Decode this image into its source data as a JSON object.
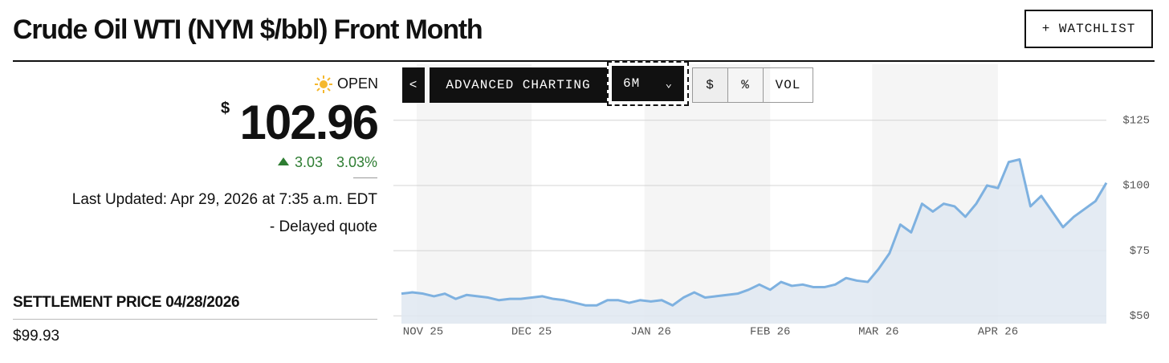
{
  "header": {
    "title": "Crude Oil WTI (NYM $/bbl) Front Month",
    "watchlist_button": "+ WATCHLIST"
  },
  "quote": {
    "status": "OPEN",
    "currency": "$",
    "price": "102.96",
    "change": "3.03",
    "change_percent": "3.03%",
    "last_updated": "Last Updated: Apr 29, 2026 at 7:35 a.m. EDT",
    "note": "- Delayed quote",
    "settlement_label": "SETTLEMENT PRICE 04/28/2026",
    "settlement_value": "$99.93"
  },
  "toolbar": {
    "back": "<",
    "advanced": "ADVANCED CHARTING",
    "range": "6M",
    "modes": [
      "$",
      "%",
      "VOL"
    ]
  },
  "chart_data": {
    "type": "line",
    "color": "#7eb1e0",
    "area_color": "#dfe7f1",
    "grid": true,
    "categories": [
      null,
      null,
      "NOV 25",
      null,
      null,
      null,
      null,
      null,
      null,
      null,
      null,
      null,
      "DEC 25",
      null,
      null,
      null,
      null,
      null,
      null,
      null,
      null,
      null,
      null,
      "JAN 26",
      null,
      null,
      null,
      null,
      null,
      null,
      null,
      null,
      null,
      null,
      "FEB 26",
      null,
      null,
      null,
      null,
      null,
      null,
      null,
      null,
      null,
      "MAR 26",
      null,
      null,
      null,
      null,
      null,
      null,
      null,
      null,
      null,
      null,
      "APR 26",
      null,
      null,
      null,
      null,
      null,
      null,
      null,
      null,
      null,
      null
    ],
    "values": [
      58.5,
      59,
      58.5,
      57.5,
      58.5,
      56.5,
      58,
      57.5,
      57,
      56,
      56.5,
      56.5,
      57,
      57.5,
      56.5,
      56,
      55,
      54,
      54,
      56,
      56,
      55,
      56,
      55.5,
      56,
      54,
      57,
      59,
      57,
      57.5,
      58,
      58.5,
      60,
      62,
      60,
      63,
      61.5,
      62,
      61,
      61,
      62,
      64.5,
      63.5,
      63,
      68,
      74,
      85,
      82,
      93,
      90,
      93,
      92,
      88,
      93,
      100,
      99,
      109,
      110,
      92,
      96,
      90,
      84,
      88,
      91,
      94,
      101
    ],
    "ylim": [
      47,
      146.5
    ],
    "yticks": [
      {
        "value": 125,
        "label": "$125"
      },
      {
        "value": 100,
        "label": "$100"
      },
      {
        "value": 75,
        "label": "$75"
      },
      {
        "value": 50,
        "label": "$50"
      }
    ]
  }
}
